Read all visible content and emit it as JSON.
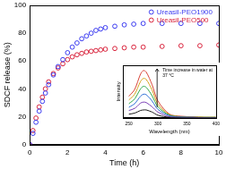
{
  "chart_data": [
    {
      "type": "scatter",
      "x_label": "Time (h)",
      "y_label": "SDCF release (%)",
      "x": [
        0,
        0.17,
        0.33,
        0.5,
        0.67,
        0.83,
        1,
        1.25,
        1.5,
        1.75,
        2,
        2.25,
        2.5,
        2.75,
        3,
        3.25,
        3.5,
        3.75,
        4,
        4.5,
        5,
        5.5,
        6,
        7,
        8,
        9,
        10
      ],
      "series": [
        {
          "name": "Ureasil-PEO1900",
          "color": "#3a3af0",
          "marker": "open_circle",
          "values": [
            0,
            8,
            16,
            24,
            31,
            37,
            43,
            50,
            56,
            61,
            66,
            70,
            73,
            76,
            78,
            80,
            82,
            83,
            84,
            85,
            86,
            86.5,
            87,
            87,
            87,
            87,
            87
          ]
        },
        {
          "name": "Ureasil-PEO500",
          "color": "#d8213a",
          "marker": "open_circle",
          "values": [
            0,
            10,
            19,
            27,
            34,
            40,
            45,
            51,
            55,
            58,
            61,
            63,
            64.5,
            65.5,
            66.5,
            67,
            67.5,
            68,
            68.5,
            69,
            69.5,
            70,
            70,
            70.5,
            71,
            71,
            71.5
          ]
        }
      ],
      "xlim": [
        0,
        10
      ],
      "xticks": [
        0,
        2,
        4,
        6,
        8,
        10
      ],
      "ylim": [
        0,
        100
      ],
      "yticks": [
        0,
        20,
        40,
        60,
        80,
        100
      ],
      "grid": false,
      "legend": "upper right"
    },
    {
      "type": "line",
      "x_label": "Wavelength (nm)",
      "y_label": "Intensity",
      "annotation": "Time increase in water at 37 °C",
      "x": [
        250,
        260,
        270,
        275,
        280,
        290,
        300,
        320,
        340,
        360,
        380,
        400
      ],
      "series": [
        {
          "color": "#1b1b1b",
          "values": [
            0.07,
            0.09,
            0.14,
            0.15,
            0.15,
            0.11,
            0.05,
            0.01,
            0,
            0,
            0,
            0
          ]
        },
        {
          "color": "#7a3fb5",
          "values": [
            0.14,
            0.18,
            0.28,
            0.3,
            0.29,
            0.21,
            0.11,
            0.02,
            0.01,
            0.01,
            0,
            0
          ]
        },
        {
          "color": "#2f6fd6",
          "values": [
            0.2,
            0.27,
            0.41,
            0.45,
            0.44,
            0.32,
            0.16,
            0.04,
            0.01,
            0.01,
            0,
            0
          ]
        },
        {
          "color": "#2ea84a",
          "values": [
            0.27,
            0.36,
            0.55,
            0.6,
            0.58,
            0.42,
            0.21,
            0.05,
            0.02,
            0.01,
            0.01,
            0.01
          ]
        },
        {
          "color": "#d6a21c",
          "values": [
            0.34,
            0.45,
            0.69,
            0.75,
            0.73,
            0.53,
            0.26,
            0.06,
            0.02,
            0.02,
            0.01,
            0.01
          ]
        },
        {
          "color": "#d8453a",
          "values": [
            0.41,
            0.54,
            0.83,
            0.9,
            0.87,
            0.63,
            0.32,
            0.07,
            0.03,
            0.02,
            0.01,
            0.01
          ]
        }
      ],
      "xlim": [
        240,
        400
      ],
      "xticks": [
        250,
        300,
        350,
        400
      ],
      "ylim": [
        0,
        1
      ],
      "grid": false,
      "tick_labels": "x"
    }
  ]
}
